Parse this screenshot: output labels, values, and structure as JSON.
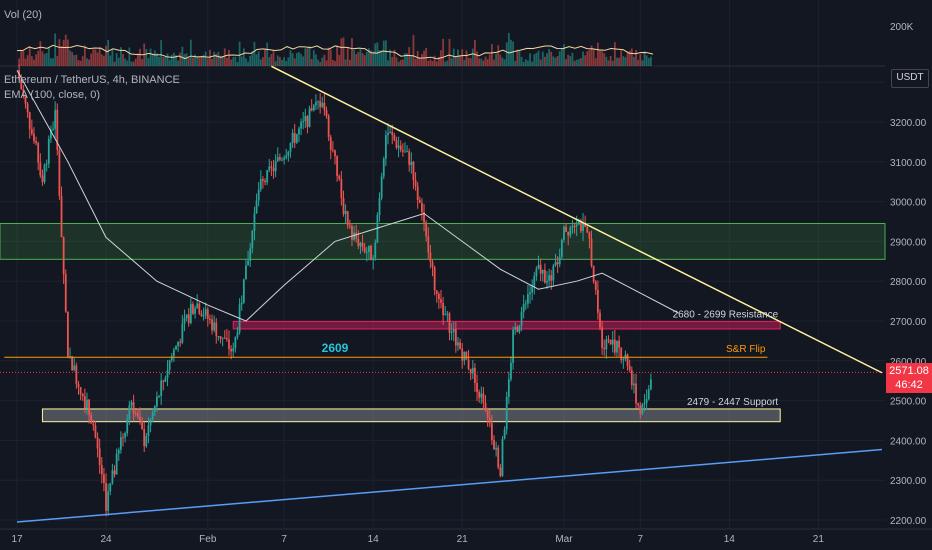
{
  "legend": {
    "volume": "Vol (20)",
    "symbol": "Ethereum / TetherUS, 4h, BINANCE",
    "ema": "EMA (100, close, 0)"
  },
  "price_axis": {
    "currency": "USDT",
    "ticks": [
      "3200.00",
      "3100.00",
      "3000.00",
      "2900.00",
      "2800.00",
      "2700.00",
      "2600.00",
      "2500.00",
      "2400.00",
      "2300.00",
      "2200.00"
    ],
    "volume_tick": "200K",
    "last_price": "2571.08",
    "countdown": "46:42"
  },
  "time_axis": {
    "ticks": [
      "17",
      "24",
      "Feb",
      "7",
      "14",
      "21",
      "Mar",
      "7",
      "14",
      "21"
    ]
  },
  "colors": {
    "background": "#131722",
    "up": "#26a69a",
    "down": "#ef5350",
    "ema": "#d1d4dc",
    "trendline_down": "#fff59d",
    "trendline_up": "#5b9cf6",
    "flip_line": "#ff9800",
    "resistance_zone": "#e91e63",
    "support_zone": "#9598a1",
    "green_zone": "#4caf50"
  },
  "chart_data": {
    "type": "candlestick",
    "title": "Ethereum / TetherUS, 4h, BINANCE",
    "timeframe": "4h",
    "ylim": [
      2200,
      3350
    ],
    "x_range": [
      "Jan 17",
      "Mar 26"
    ],
    "grid": true,
    "indicators": [
      {
        "name": "EMA (100, close, 0)"
      },
      {
        "name": "Vol (20)"
      }
    ],
    "price_path": [
      [
        "Jan 17",
        3330
      ],
      [
        "Jan 19",
        3060
      ],
      [
        "Jan 20",
        3220
      ],
      [
        "Jan 21",
        2620
      ],
      [
        "Jan 23",
        2440
      ],
      [
        "Jan 24",
        2240
      ],
      [
        "Jan 26",
        2500
      ],
      [
        "Jan 27",
        2400
      ],
      [
        "Jan 29",
        2600
      ],
      [
        "Jan 31",
        2750
      ],
      [
        "Feb 3",
        2620
      ],
      [
        "Feb 5",
        3030
      ],
      [
        "Feb 8",
        3170
      ],
      [
        "Feb 10",
        3260
      ],
      [
        "Feb 12",
        2930
      ],
      [
        "Feb 14",
        2860
      ],
      [
        "Feb 15",
        3180
      ],
      [
        "Feb 17",
        3100
      ],
      [
        "Feb 19",
        2760
      ],
      [
        "Feb 21",
        2620
      ],
      [
        "Feb 22",
        2560
      ],
      [
        "Feb 24",
        2330
      ],
      [
        "Feb 25",
        2660
      ],
      [
        "Feb 27",
        2830
      ],
      [
        "Feb 28",
        2800
      ],
      [
        "Mar 1",
        2920
      ],
      [
        "Mar 2",
        2960
      ],
      [
        "Mar 3",
        2900
      ],
      [
        "Mar 4",
        2650
      ],
      [
        "Mar 5",
        2640
      ],
      [
        "Mar 6",
        2600
      ],
      [
        "Mar 7",
        2460
      ],
      [
        "Mar 8",
        2571
      ]
    ],
    "ema_path": [
      [
        "Jan 17",
        3330
      ],
      [
        "Jan 21",
        3100
      ],
      [
        "Jan 24",
        2910
      ],
      [
        "Jan 28",
        2800
      ],
      [
        "Feb 1",
        2740
      ],
      [
        "Feb 4",
        2700
      ],
      [
        "Feb 7",
        2790
      ],
      [
        "Feb 11",
        2900
      ],
      [
        "Feb 16",
        2950
      ],
      [
        "Feb 18",
        2970
      ],
      [
        "Feb 21",
        2900
      ],
      [
        "Feb 24",
        2830
      ],
      [
        "Feb 27",
        2780
      ],
      [
        "Mar 2",
        2800
      ],
      [
        "Mar 4",
        2820
      ],
      [
        "Mar 7",
        2770
      ],
      [
        "Mar 10",
        2720
      ]
    ],
    "annotations": [
      {
        "label": "2609",
        "type": "horizontal-line",
        "price": 2609
      },
      {
        "label": "S&R Flip",
        "type": "horizontal-line",
        "price": 2609
      },
      {
        "label": "2680 - 2699 Resistance",
        "type": "zone",
        "low": 2680,
        "high": 2699
      },
      {
        "label": "2479 - 2447 Support",
        "type": "zone",
        "low": 2447,
        "high": 2479
      },
      {
        "label": "",
        "type": "zone",
        "low": 2855,
        "high": 2945
      },
      {
        "label": "",
        "type": "trendline",
        "from": [
          "Feb 6",
          3340
        ],
        "to": [
          "Mar 26",
          2570
        ]
      },
      {
        "label": "",
        "type": "trendline",
        "from": [
          "Jan 17",
          2195
        ],
        "to": [
          "Mar 26",
          2377
        ]
      },
      {
        "label": "",
        "type": "horizontal-line",
        "price": 2571
      }
    ]
  }
}
